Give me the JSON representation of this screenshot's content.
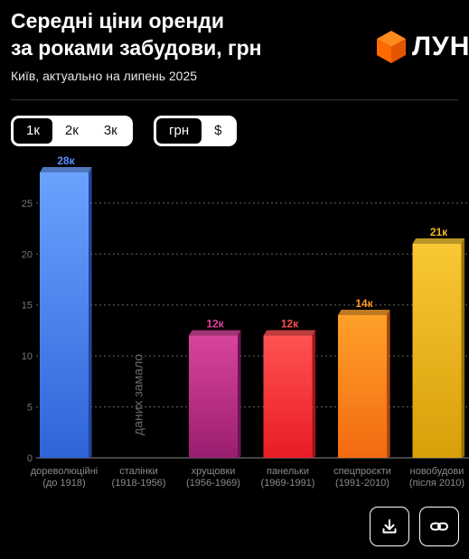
{
  "header": {
    "title": "Середні ціни оренди\nза роками забудови, грн",
    "subtitle": "Київ, актуально на липень 2025"
  },
  "brand": {
    "name": "ЛУН",
    "logo_icon": "orange-cube-logo",
    "logo_color": "#ff6a00"
  },
  "controls": {
    "amount_options": [
      "1к",
      "2к",
      "3к"
    ],
    "amount_selected": "1к",
    "currency_options": [
      "грн",
      "$"
    ],
    "currency_selected": "грн"
  },
  "actions": {
    "download_icon": "download-icon",
    "link_icon": "link-icon"
  },
  "chart_data": {
    "type": "bar",
    "categories": [
      [
        "дореволюційні",
        "(до 1918)"
      ],
      [
        "сталінки",
        "(1918-1956)"
      ],
      [
        "хрущовки",
        "(1956-1969)"
      ],
      [
        "панельки",
        "(1969-1991)"
      ],
      [
        "спецпроєкти",
        "(1991-2010)"
      ],
      [
        "новобудови",
        "(після 2010)"
      ]
    ],
    "values": [
      28,
      null,
      12,
      12,
      14,
      21
    ],
    "value_labels": [
      "28к",
      "",
      "12к",
      "12к",
      "14к",
      "21к"
    ],
    "no_data_label": "даних замало",
    "y_ticks": [
      0,
      5,
      10,
      15,
      20,
      25
    ],
    "ylim": [
      0,
      28
    ],
    "grid": true,
    "colors": {
      "bars": [
        [
          "#6aa2ff",
          "#2f64d8"
        ],
        [
          "#555555",
          "#333333"
        ],
        [
          "#d8449c",
          "#9a1d70"
        ],
        [
          "#ff5252",
          "#e81c24"
        ],
        [
          "#ffa02a",
          "#f36a10"
        ],
        [
          "#f9c833",
          "#d89f0a"
        ]
      ],
      "labels": [
        "#5a8fff",
        "#666666",
        "#e33fa0",
        "#ff4d4d",
        "#ff9427",
        "#f5b528"
      ]
    }
  }
}
